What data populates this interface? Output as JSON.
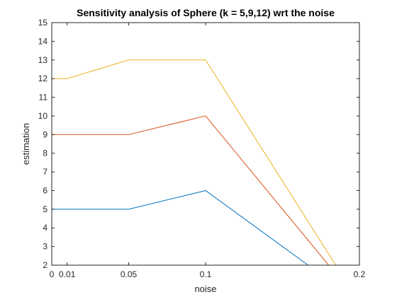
{
  "chart_data": {
    "type": "line",
    "title": "Sensitivity analysis of Sphere (k = 5,9,12) wrt the noise",
    "xlabel": "noise",
    "ylabel": "estimation",
    "xlim": [
      0,
      0.2
    ],
    "ylim": [
      2,
      15
    ],
    "x_ticks": [
      0,
      0.01,
      0.05,
      0.1,
      0.2
    ],
    "x_tick_labels": [
      "0",
      "0.01",
      "0.05",
      "0.1",
      "0.2"
    ],
    "y_ticks": [
      2,
      3,
      4,
      5,
      6,
      7,
      8,
      9,
      10,
      11,
      12,
      13,
      14,
      15
    ],
    "y_tick_labels": [
      "2",
      "3",
      "4",
      "5",
      "6",
      "7",
      "8",
      "9",
      "10",
      "11",
      "12",
      "13",
      "14",
      "15"
    ],
    "grid": false,
    "box": true,
    "series": [
      {
        "color": "#0072bd",
        "x": [
          0,
          0.01,
          0.05,
          0.1,
          0.2
        ],
        "y": [
          5,
          5,
          5,
          6,
          0
        ]
      },
      {
        "color": "#d95319",
        "x": [
          0,
          0.01,
          0.05,
          0.1,
          0.2
        ],
        "y": [
          9,
          9,
          9,
          10,
          0
        ]
      },
      {
        "color": "#edb120",
        "x": [
          0,
          0.01,
          0.05,
          0.1,
          0.2
        ],
        "y": [
          12,
          12,
          13,
          13,
          0
        ]
      }
    ]
  }
}
